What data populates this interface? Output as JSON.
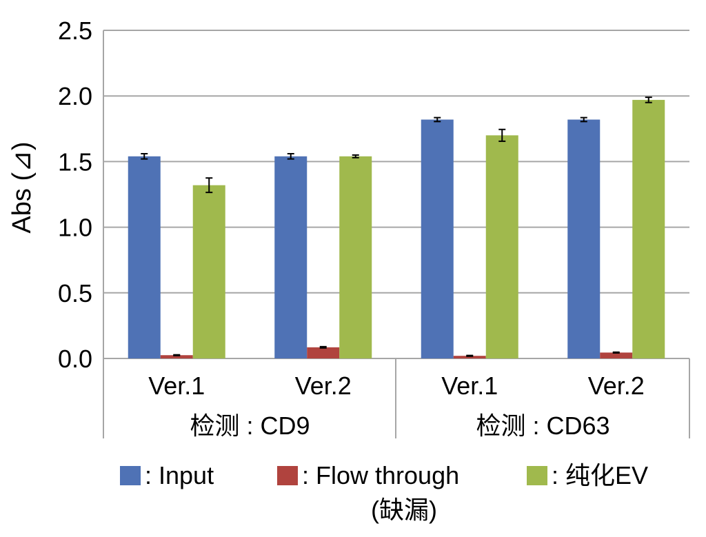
{
  "chart_data": {
    "type": "bar",
    "ylabel": "Abs (⊿)",
    "ylim": [
      0,
      2.5
    ],
    "yticks": [
      "0.0",
      "0.5",
      "1.0",
      "1.5",
      "2.0",
      "2.5"
    ],
    "grid": true,
    "legend_position": "bottom",
    "categories": [
      "Ver.1",
      "Ver.2",
      "Ver.1",
      "Ver.2"
    ],
    "category_groups": [
      {
        "label": "检测 : CD9",
        "categories": [
          "Ver.1",
          "Ver.2"
        ]
      },
      {
        "label": "检测 : CD63",
        "categories": [
          "Ver.1",
          "Ver.2"
        ]
      }
    ],
    "series": [
      {
        "name": ":  Input",
        "color": "#4f72b5",
        "values": [
          1.54,
          1.54,
          1.82,
          1.82
        ],
        "errors": [
          0.02,
          0.02,
          0.015,
          0.015
        ]
      },
      {
        "name": ":  Flow through",
        "name_line2": "(缺漏)",
        "color": "#b0433e",
        "values": [
          0.025,
          0.085,
          0.02,
          0.045
        ],
        "errors": [
          0.003,
          0.005,
          0.003,
          0.003
        ]
      },
      {
        "name": ":  纯化EV",
        "color": "#a0b94d",
        "values": [
          1.32,
          1.54,
          1.7,
          1.97
        ],
        "errors": [
          0.055,
          0.01,
          0.045,
          0.02
        ]
      }
    ]
  }
}
